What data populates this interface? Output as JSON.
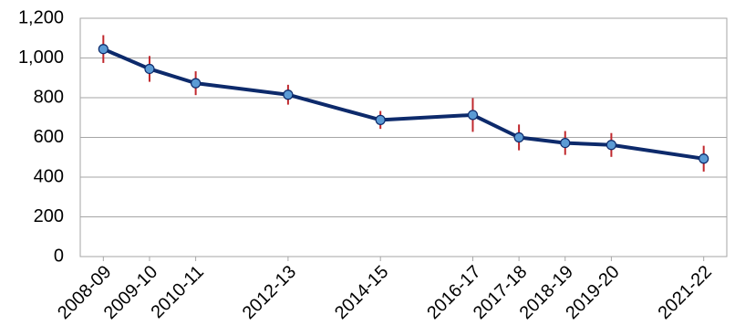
{
  "chart_data": {
    "type": "line",
    "x": [
      2008,
      2009,
      2010,
      2012,
      2014,
      2016,
      2017,
      2018,
      2019,
      2021
    ],
    "xlim": [
      2007.5,
      2021.5
    ],
    "xticks": [
      {
        "value": 2008,
        "label": "2008-09"
      },
      {
        "value": 2009,
        "label": "2009-10"
      },
      {
        "value": 2010,
        "label": "2010-11"
      },
      {
        "value": 2012,
        "label": "2012-13"
      },
      {
        "value": 2014,
        "label": "2014-15"
      },
      {
        "value": 2016,
        "label": "2016-17"
      },
      {
        "value": 2017,
        "label": "2017-18"
      },
      {
        "value": 2018,
        "label": "2018-19"
      },
      {
        "value": 2019,
        "label": "2019-20"
      },
      {
        "value": 2021,
        "label": "2021-22"
      }
    ],
    "series": [
      {
        "color": "#0d2a6b",
        "marker_color": "#5b9bd5",
        "error_color": "#c0282d",
        "values": [
          1045,
          945,
          873,
          815,
          688,
          713,
          600,
          572,
          562,
          493
        ],
        "errors": [
          70,
          65,
          60,
          50,
          45,
          85,
          65,
          60,
          60,
          65
        ]
      }
    ],
    "ylim": [
      0,
      1200
    ],
    "yticks": [
      0,
      200,
      400,
      600,
      800,
      {
        "value": 1000,
        "label": "1,000"
      },
      {
        "value": 1200,
        "label": "1,200"
      }
    ],
    "grid": true
  }
}
